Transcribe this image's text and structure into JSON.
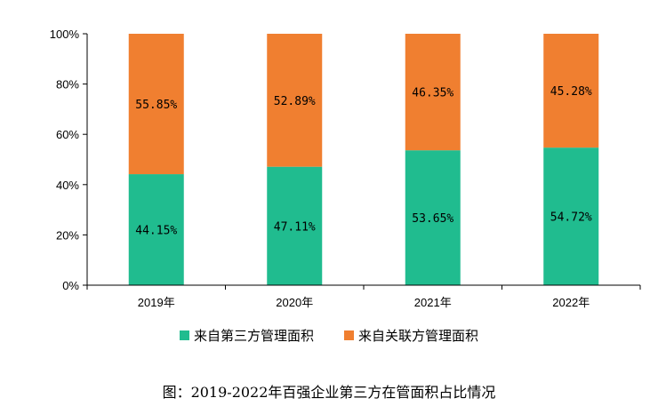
{
  "chart_data": {
    "type": "bar",
    "stacked": true,
    "percent": true,
    "categories": [
      "2019年",
      "2020年",
      "2021年",
      "2022年"
    ],
    "series": [
      {
        "name": "来自第三方管理面积",
        "color": "#20bc8f",
        "values": [
          44.15,
          47.11,
          53.65,
          54.72
        ],
        "labels": [
          "44.15%",
          "47.11%",
          "53.65%",
          "54.72%"
        ]
      },
      {
        "name": "来自关联方管理面积",
        "color": "#f07f30",
        "values": [
          55.85,
          52.89,
          46.35,
          45.28
        ],
        "labels": [
          "55.85%",
          "52.89%",
          "46.35%",
          "45.28%"
        ]
      }
    ],
    "ylim": [
      0,
      100
    ],
    "yticks": [
      "0%",
      "20%",
      "40%",
      "60%",
      "80%",
      "100%"
    ],
    "legend_position": "bottom",
    "title": ""
  },
  "caption": "图：2019-2022年百强企业第三方在管面积占比情况"
}
